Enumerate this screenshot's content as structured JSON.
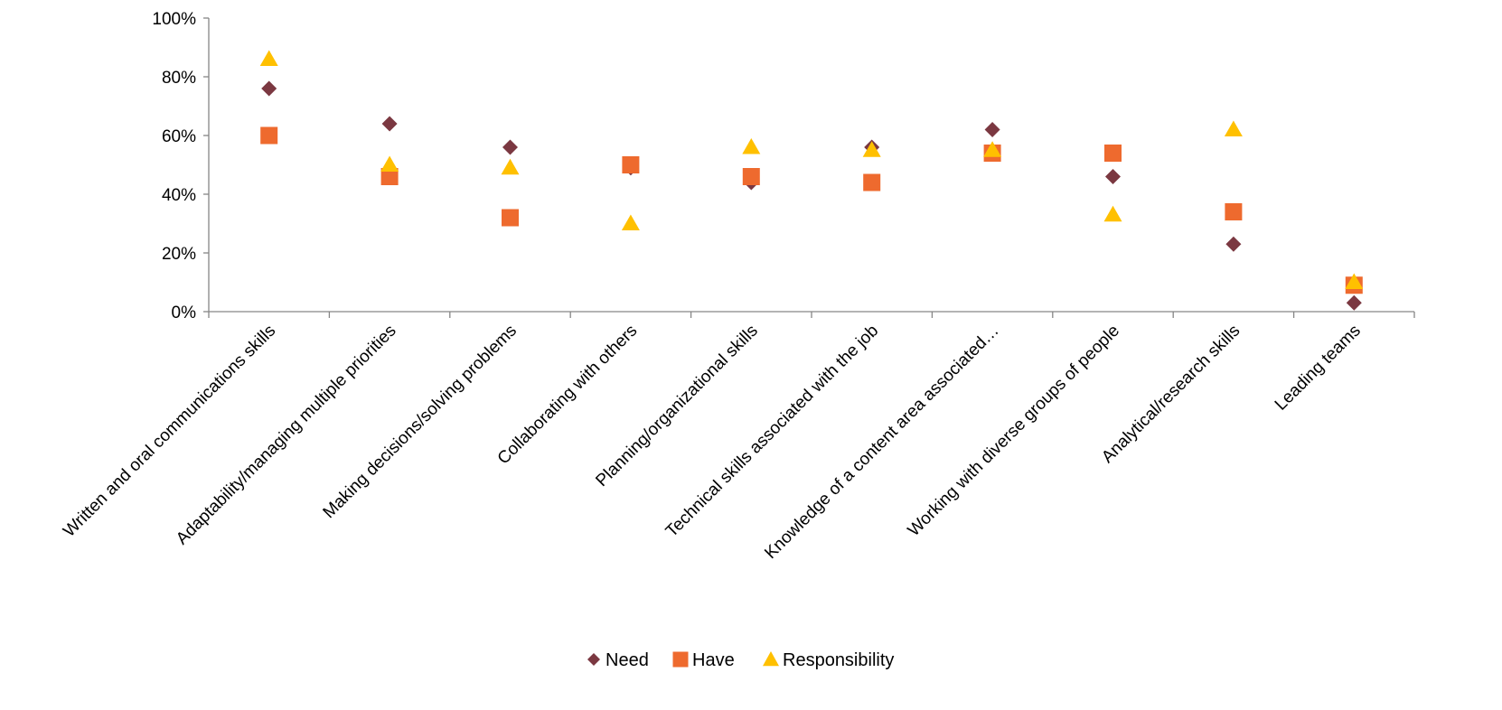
{
  "chart_data": {
    "type": "scatter",
    "categories": [
      "Written and oral communications skills",
      "Adaptability/managing multiple priorities",
      "Making decisions/solving problems",
      "Collaborating with others",
      "Planning/organizational skills",
      "Technical skills associated with the job",
      "Knowledge of a content area associated…",
      "Working with diverse groups of people",
      "Analytical/research skills",
      "Leading teams"
    ],
    "series": [
      {
        "name": "Need",
        "marker": "diamond",
        "color": "#7B3841",
        "values": [
          76,
          64,
          56,
          49,
          44,
          56,
          62,
          46,
          23,
          3
        ]
      },
      {
        "name": "Have",
        "marker": "square",
        "color": "#EE6A2E",
        "values": [
          60,
          46,
          32,
          50,
          46,
          44,
          54,
          54,
          34,
          9
        ]
      },
      {
        "name": "Responsibility",
        "marker": "triangle",
        "color": "#FFC000",
        "values": [
          86,
          50,
          49,
          30,
          56,
          55,
          55,
          33,
          62,
          10
        ]
      }
    ],
    "ylim": [
      0,
      100
    ],
    "yticks": [
      "0%",
      "20%",
      "40%",
      "60%",
      "80%",
      "100%"
    ],
    "ytick_values": [
      0,
      20,
      40,
      60,
      80,
      100
    ],
    "grid": false,
    "legend_position": "bottom",
    "title": "",
    "xlabel": "",
    "ylabel": ""
  }
}
